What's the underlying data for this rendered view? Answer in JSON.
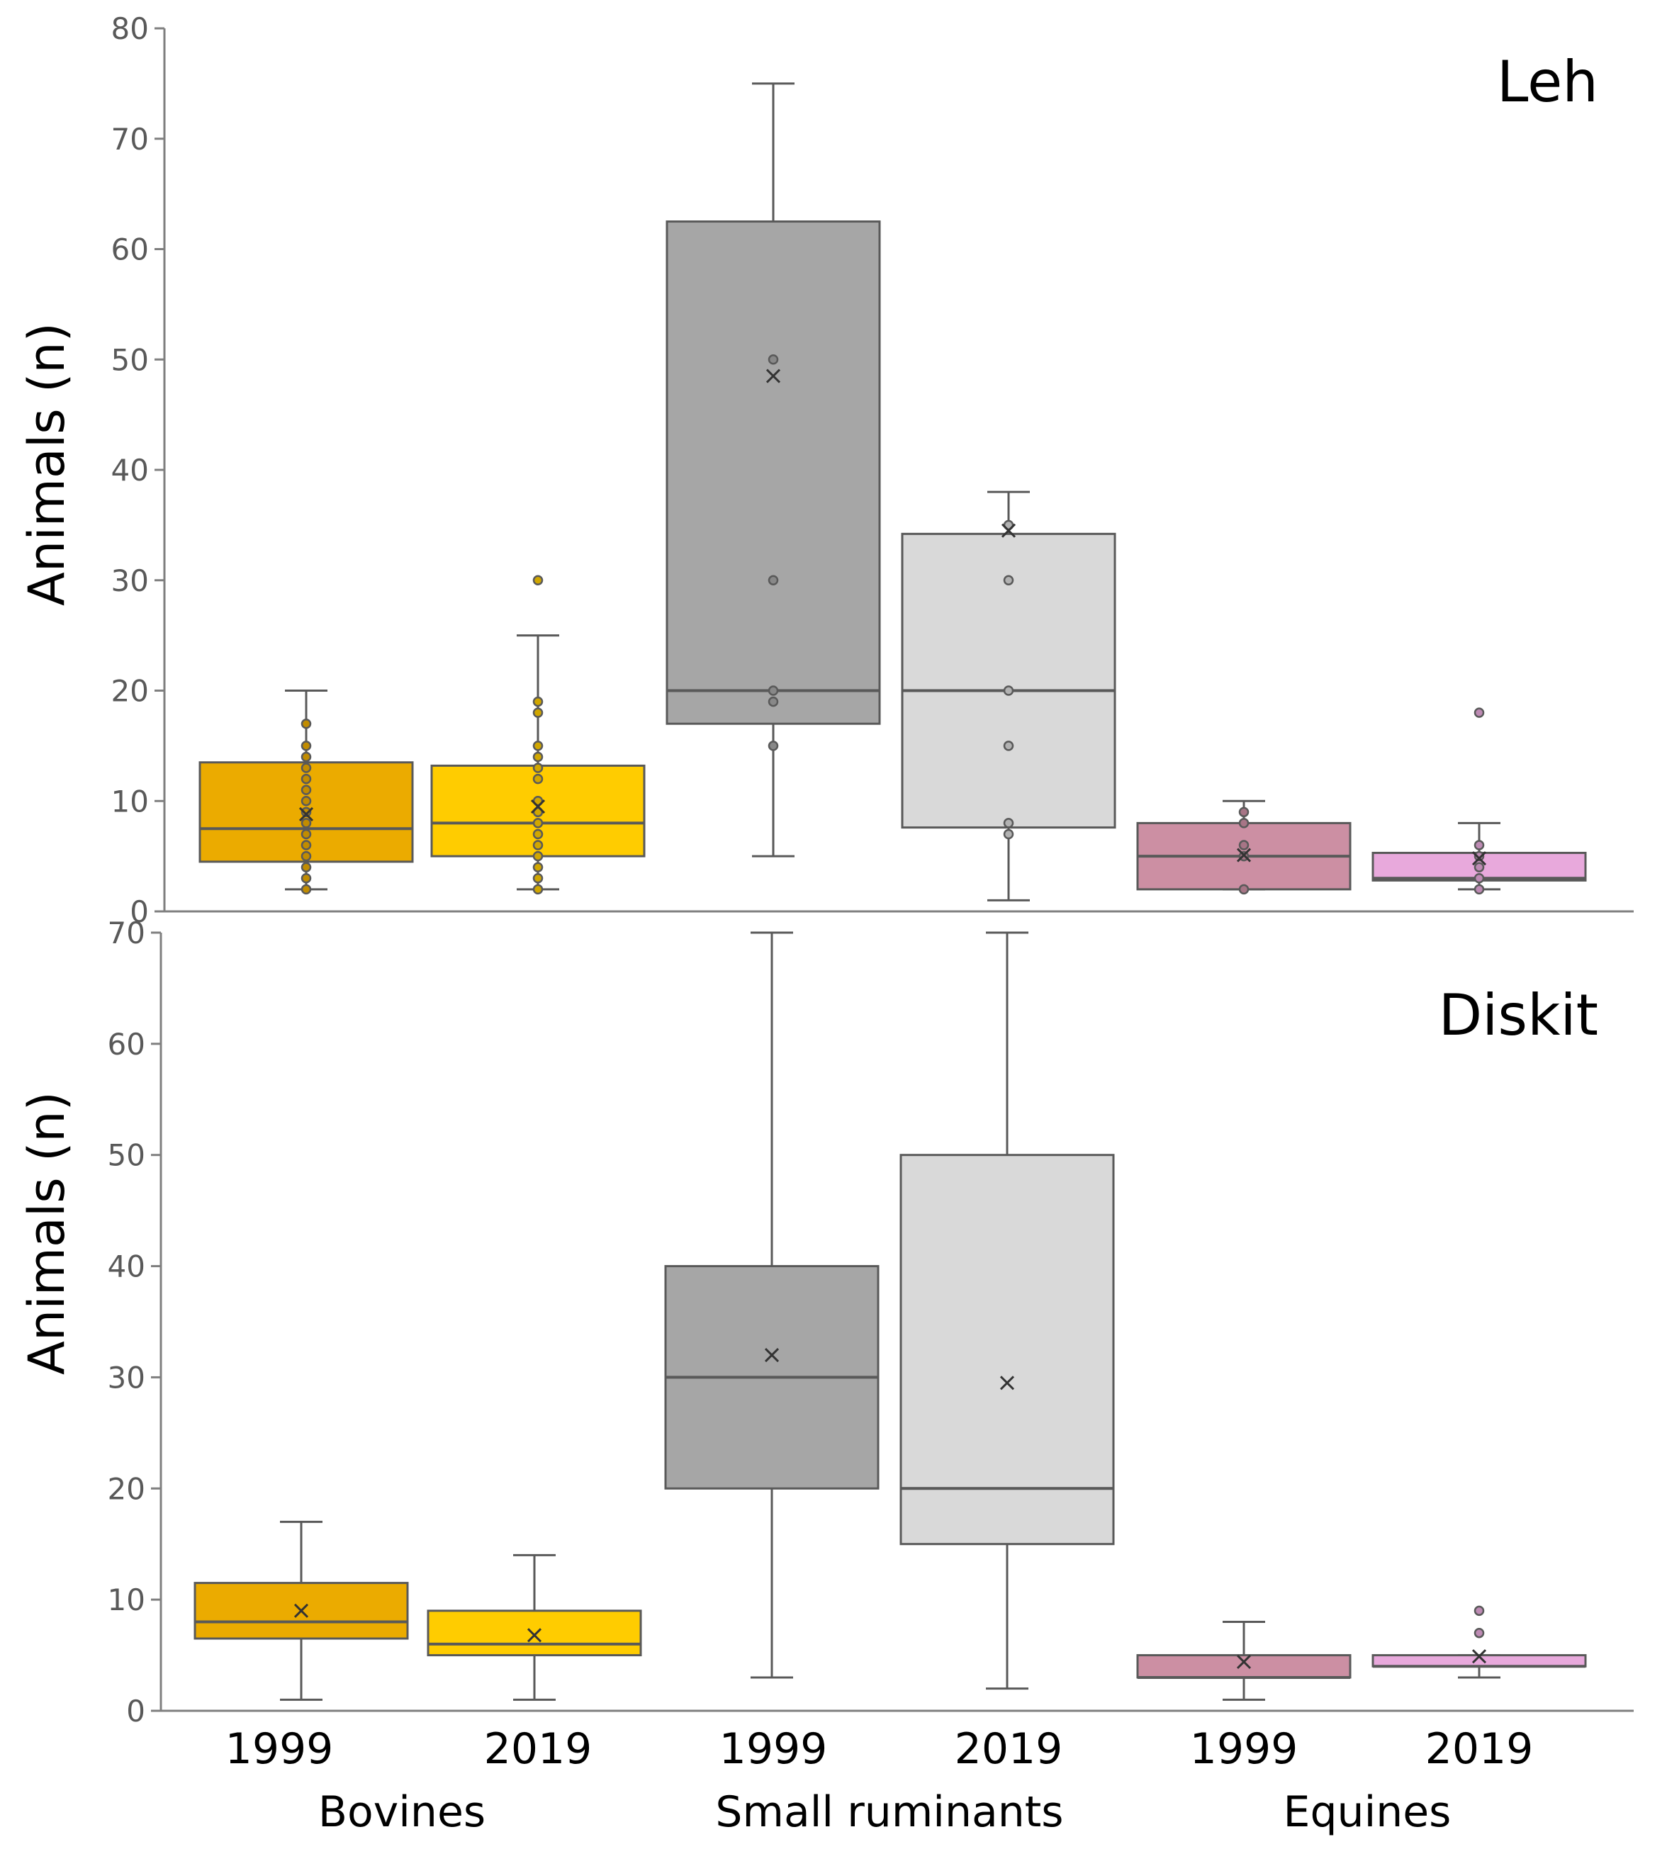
{
  "chart_data": [
    {
      "type": "box",
      "title": "Leh",
      "ylabel": "Animals (n)",
      "ylim": [
        0,
        80
      ],
      "yticks": [
        0,
        10,
        20,
        30,
        40,
        50,
        60,
        70,
        80
      ],
      "groups": [
        {
          "category": "Bovines",
          "year": "1999",
          "color": "#EBAB00",
          "whisker_low": 2,
          "q1": 4.5,
          "median": 7.5,
          "q3": 13.5,
          "whisker_high": 20,
          "mean": 8.8,
          "points": [
            2,
            3,
            4,
            5,
            6,
            7,
            8,
            9,
            10,
            11,
            12,
            13,
            14,
            15,
            17
          ]
        },
        {
          "category": "Bovines",
          "year": "2019",
          "color": "#FFCC00",
          "whisker_low": 2,
          "q1": 5,
          "median": 8,
          "q3": 13.2,
          "whisker_high": 25,
          "mean": 9.5,
          "points": [
            2,
            3,
            4,
            5,
            6,
            7,
            8,
            9,
            10,
            12,
            13,
            14,
            15,
            18,
            19,
            30
          ]
        },
        {
          "category": "Small ruminants",
          "year": "1999",
          "color": "#A6A6A6",
          "whisker_low": 5,
          "q1": 17,
          "median": 20,
          "q3": 62.5,
          "whisker_high": 75,
          "mean": 48.5,
          "points": [
            15,
            19,
            20,
            30,
            50
          ]
        },
        {
          "category": "Small ruminants",
          "year": "2019",
          "color": "#D9D9D9",
          "whisker_low": 1,
          "q1": 7.6,
          "median": 20,
          "q3": 34.2,
          "whisker_high": 38,
          "mean": 34.5,
          "points": [
            7,
            8,
            15,
            20,
            30,
            35
          ]
        },
        {
          "category": "Equines",
          "year": "1999",
          "color": "#CC8FA3",
          "whisker_low": 2,
          "q1": 2,
          "median": 5,
          "q3": 8,
          "whisker_high": 10,
          "mean": 5.1,
          "points": [
            2,
            5,
            6,
            8,
            9
          ]
        },
        {
          "category": "Equines",
          "year": "2019",
          "color": "#E8A9DC",
          "whisker_low": 2,
          "q1": 2.8,
          "median": 3,
          "q3": 5.3,
          "whisker_high": 8,
          "mean": 4.8,
          "points": [
            2,
            3,
            4,
            5,
            6,
            18
          ]
        }
      ]
    },
    {
      "type": "box",
      "title": "Diskit",
      "ylabel": "Animals (n)",
      "ylim": [
        0,
        70
      ],
      "yticks": [
        0,
        10,
        20,
        30,
        40,
        50,
        60,
        70
      ],
      "groups": [
        {
          "category": "Bovines",
          "year": "1999",
          "color": "#EBAB00",
          "whisker_low": 1,
          "q1": 6.5,
          "median": 8,
          "q3": 11.5,
          "whisker_high": 17,
          "mean": 9,
          "points": []
        },
        {
          "category": "Bovines",
          "year": "2019",
          "color": "#FFCC00",
          "whisker_low": 1,
          "q1": 5,
          "median": 6,
          "q3": 9,
          "whisker_high": 14,
          "mean": 6.8,
          "points": []
        },
        {
          "category": "Small ruminants",
          "year": "1999",
          "color": "#A6A6A6",
          "whisker_low": 3,
          "q1": 20,
          "median": 30,
          "q3": 40,
          "whisker_high": 70,
          "mean": 32,
          "points": []
        },
        {
          "category": "Small ruminants",
          "year": "2019",
          "color": "#D9D9D9",
          "whisker_low": 2,
          "q1": 15,
          "median": 20,
          "q3": 50,
          "whisker_high": 70,
          "mean": 29.5,
          "points": []
        },
        {
          "category": "Equines",
          "year": "1999",
          "color": "#CC8FA3",
          "whisker_low": 1,
          "q1": 3,
          "median": 3,
          "q3": 5,
          "whisker_high": 8,
          "mean": 4.4,
          "points": []
        },
        {
          "category": "Equines",
          "year": "2019",
          "color": "#E8A9DC",
          "whisker_low": 3,
          "q1": 4,
          "median": 4,
          "q3": 5,
          "whisker_high": 5,
          "mean": 4.9,
          "points": [
            7,
            9
          ]
        }
      ]
    }
  ],
  "x_axis": {
    "years": [
      "1999",
      "2019",
      "1999",
      "2019",
      "1999",
      "2019"
    ],
    "categories": [
      "Bovines",
      "Small ruminants",
      "Equines"
    ]
  }
}
